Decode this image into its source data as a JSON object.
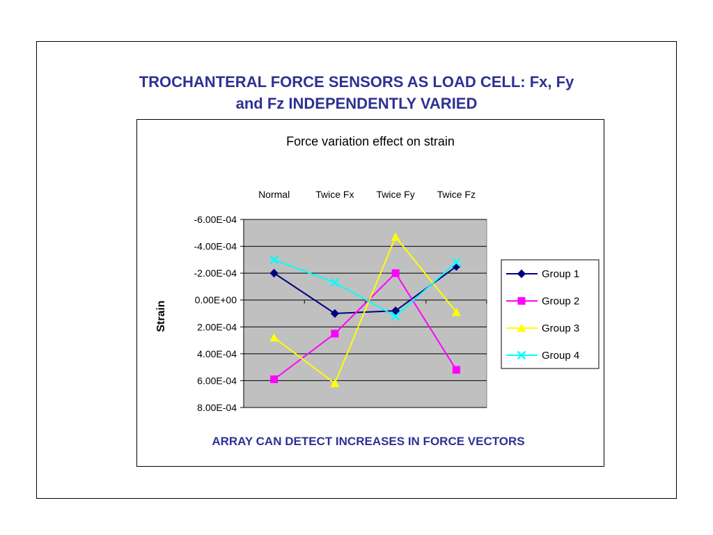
{
  "slide": {
    "title_line1": "TROCHANTERAL FORCE SENSORS AS LOAD CELL: Fx, Fy",
    "title_line2": "and Fz INDEPENDENTLY VARIED",
    "footnote": "ARRAY CAN DETECT  INCREASES IN FORCE VECTORS"
  },
  "chart_data": {
    "type": "line",
    "title": "Force variation effect on strain",
    "categories": [
      "Normal",
      "Twice Fx",
      "Twice Fy",
      "Twice Fz"
    ],
    "ylabel": "Strain",
    "xlabel": "",
    "ylim": [
      -0.0006,
      0.0008
    ],
    "y_inverted": true,
    "y_ticks": [
      -0.0006,
      -0.0004,
      -0.0002,
      0,
      0.0002,
      0.0004,
      0.0006,
      0.0008
    ],
    "y_tick_labels": [
      "-6.00E-04",
      "-4.00E-04",
      "-2.00E-04",
      "0.00E+00",
      "2.00E-04",
      "4.00E-04",
      "6.00E-04",
      "8.00E-04"
    ],
    "category_axis_position": "top",
    "grid": true,
    "plot_background": "#c0c0c0",
    "legend_position": "right",
    "series": [
      {
        "name": "Group 1",
        "color": "#000080",
        "marker": "diamond",
        "values": [
          -0.0002,
          0.0001,
          8e-05,
          -0.00025
        ]
      },
      {
        "name": "Group 2",
        "color": "#ff00ff",
        "marker": "square",
        "values": [
          0.00059,
          0.00025,
          -0.0002,
          0.00052
        ]
      },
      {
        "name": "Group 3",
        "color": "#ffff00",
        "marker": "triangle",
        "values": [
          0.00028,
          0.00062,
          -0.00047,
          9e-05
        ]
      },
      {
        "name": "Group 4",
        "color": "#00ffff",
        "marker": "x",
        "values": [
          -0.0003,
          -0.00013,
          0.00012,
          -0.00028
        ]
      }
    ]
  }
}
